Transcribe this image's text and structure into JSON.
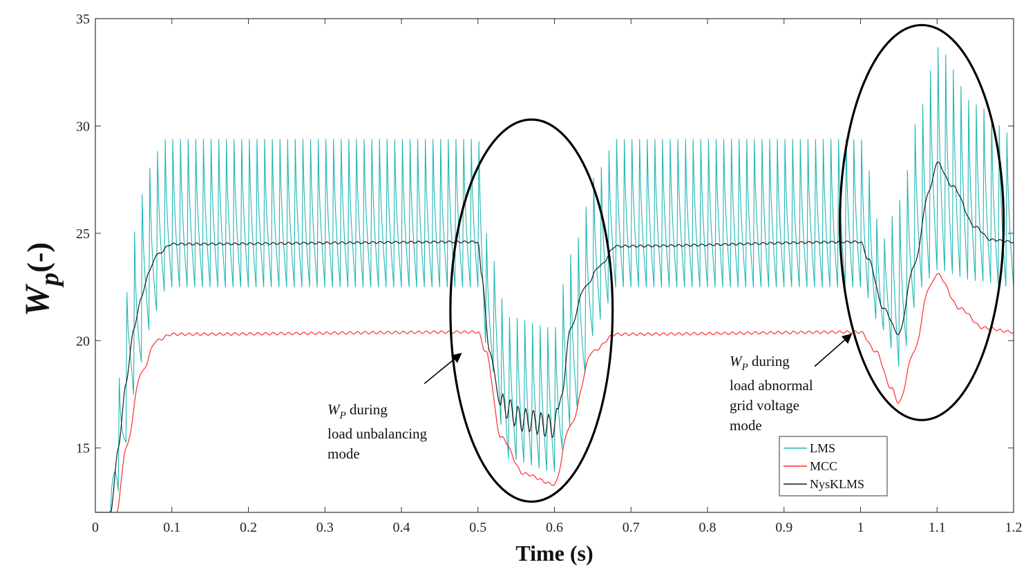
{
  "chart_data": {
    "type": "line",
    "xlabel": "Time (s)",
    "ylabel": {
      "symbol": "W",
      "subscript": "p",
      "suffix": "(-)"
    },
    "xlim": [
      0,
      1.2
    ],
    "ylim": [
      12,
      35
    ],
    "xticks": [
      "0",
      "0.1",
      "0.2",
      "0.3",
      "0.4",
      "0.5",
      "0.6",
      "0.7",
      "0.8",
      "0.9",
      "1",
      "1.1",
      "1.2"
    ],
    "yticks": [
      "15",
      "20",
      "25",
      "30",
      "35"
    ],
    "grid": false,
    "legend_position": "bottom-right",
    "series": [
      {
        "name": "LMS",
        "color": "#1fb5b5",
        "style": "oscillating",
        "oscillation_period": 0.01,
        "envelope_x": [
          0,
          0.018,
          0.03,
          0.05,
          0.07,
          0.09,
          0.1,
          0.5,
          0.515,
          0.54,
          0.6,
          0.62,
          0.66,
          0.68,
          1.0,
          1.03,
          1.05,
          1.08,
          1.1,
          1.15,
          1.2
        ],
        "envelope_upper": [
          12,
          12,
          18.5,
          25.5,
          28.5,
          29.8,
          29.8,
          29.8,
          24.5,
          21.5,
          21,
          24.5,
          28.5,
          29.8,
          29.8,
          25,
          27,
          31.5,
          34.3,
          31.5,
          30
        ],
        "envelope_lower": [
          12,
          12,
          13,
          17.5,
          20.5,
          22.3,
          22.5,
          22.5,
          19,
          14.5,
          13.9,
          16,
          21,
          22.5,
          22.5,
          20.5,
          18.8,
          22.5,
          23.3,
          22.8,
          22.5
        ]
      },
      {
        "name": "MCC",
        "color": "#ff2a2a",
        "style": "smooth",
        "ripple": 0.06,
        "x": [
          0,
          0.028,
          0.04,
          0.06,
          0.08,
          0.1,
          0.5,
          0.51,
          0.53,
          0.56,
          0.6,
          0.62,
          0.65,
          0.68,
          1.0,
          1.02,
          1.04,
          1.05,
          1.07,
          1.09,
          1.1,
          1.13,
          1.16,
          1.2
        ],
        "y": [
          12,
          12,
          15,
          18.5,
          20,
          20.3,
          20.4,
          19.5,
          15.5,
          13.8,
          13.3,
          16,
          19.5,
          20.3,
          20.4,
          19.5,
          17.8,
          17.1,
          19.5,
          22.5,
          23.1,
          21.5,
          20.6,
          20.4
        ]
      },
      {
        "name": "NysKLMS",
        "color": "#1a1a1a",
        "style": "smooth",
        "ripple": 0.05,
        "ripple_zone": [
          0.53,
          0.605,
          0.5
        ],
        "x": [
          0,
          0.02,
          0.03,
          0.04,
          0.05,
          0.06,
          0.07,
          0.08,
          0.1,
          0.5,
          0.505,
          0.515,
          0.53,
          0.56,
          0.6,
          0.61,
          0.62,
          0.64,
          0.66,
          0.68,
          1.0,
          1.01,
          1.03,
          1.05,
          1.07,
          1.09,
          1.1,
          1.12,
          1.15,
          1.17,
          1.2
        ],
        "y": [
          12,
          12,
          15,
          18,
          20.5,
          22,
          23.2,
          24,
          24.5,
          24.6,
          23,
          19.5,
          17,
          16.3,
          16,
          17.5,
          20.5,
          22.5,
          23.5,
          24.4,
          24.6,
          23.8,
          21.5,
          20.3,
          23.5,
          27,
          28.3,
          27.2,
          25.3,
          24.7,
          24.6
        ]
      }
    ],
    "annotations": [
      {
        "symbol": "W",
        "subscript": "P",
        "text": " during",
        "line2": "load unbalancing",
        "line3": "mode",
        "arrow_from_x": 0.43,
        "arrow_from_y": 18.0,
        "arrow_to_x": 0.478,
        "arrow_to_y": 19.4
      },
      {
        "symbol": "W",
        "subscript": "P",
        "text": " during",
        "line2": "load abnormal",
        "line3": "grid voltage",
        "line4": "mode",
        "arrow_from_x": 0.94,
        "arrow_from_y": 18.8,
        "arrow_to_x": 0.988,
        "arrow_to_y": 20.3
      }
    ],
    "highlight_ellipses": [
      {
        "center_x": 0.57,
        "center_y": 21.4,
        "radius_x": 0.106,
        "radius_y": 8.9
      },
      {
        "center_x": 1.08,
        "center_y": 25.5,
        "radius_x": 0.107,
        "radius_y": 9.2
      }
    ]
  }
}
